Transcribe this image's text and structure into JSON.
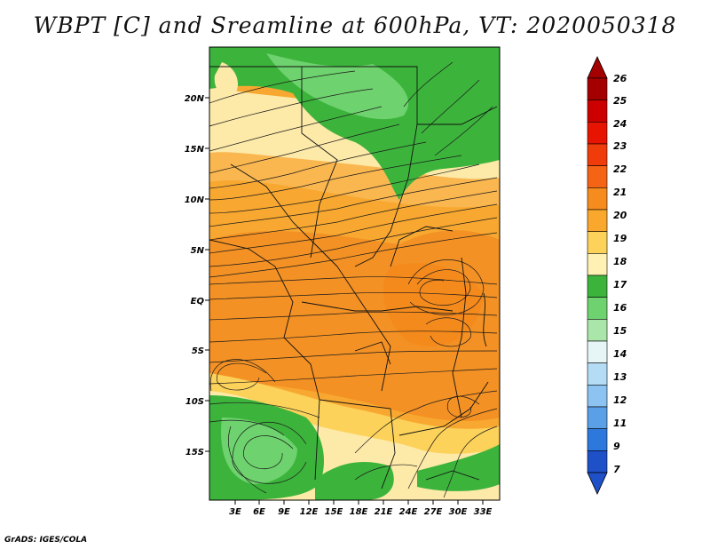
{
  "title": "WBPT [C] and Sreamline at 600hPa, VT: 2020050318",
  "credit": "GrADS: IGES/COLA",
  "map": {
    "lat_labels": [
      "20N",
      "15N",
      "10N",
      "5N",
      "EQ",
      "5S",
      "10S",
      "15S"
    ],
    "lon_labels": [
      "3E",
      "6E",
      "9E",
      "12E",
      "15E",
      "18E",
      "21E",
      "24E",
      "27E",
      "30E",
      "33E"
    ]
  },
  "colorbar": {
    "levels": [
      "26",
      "25",
      "24",
      "23",
      "22",
      "21",
      "20",
      "19",
      "18",
      "17",
      "16",
      "15",
      "14",
      "13",
      "12",
      "11",
      "9",
      "7"
    ],
    "colors": [
      "#a50000",
      "#cc0000",
      "#e61400",
      "#f03c0a",
      "#f46414",
      "#f78c1e",
      "#faa82d",
      "#fcd25a",
      "#fff0b4",
      "#3cb43c",
      "#6ed26e",
      "#aae6aa",
      "#e6f5f5",
      "#b4dcf5",
      "#8cc3f0",
      "#5aa0e6",
      "#2d78dc",
      "#1e50c8"
    ]
  }
}
